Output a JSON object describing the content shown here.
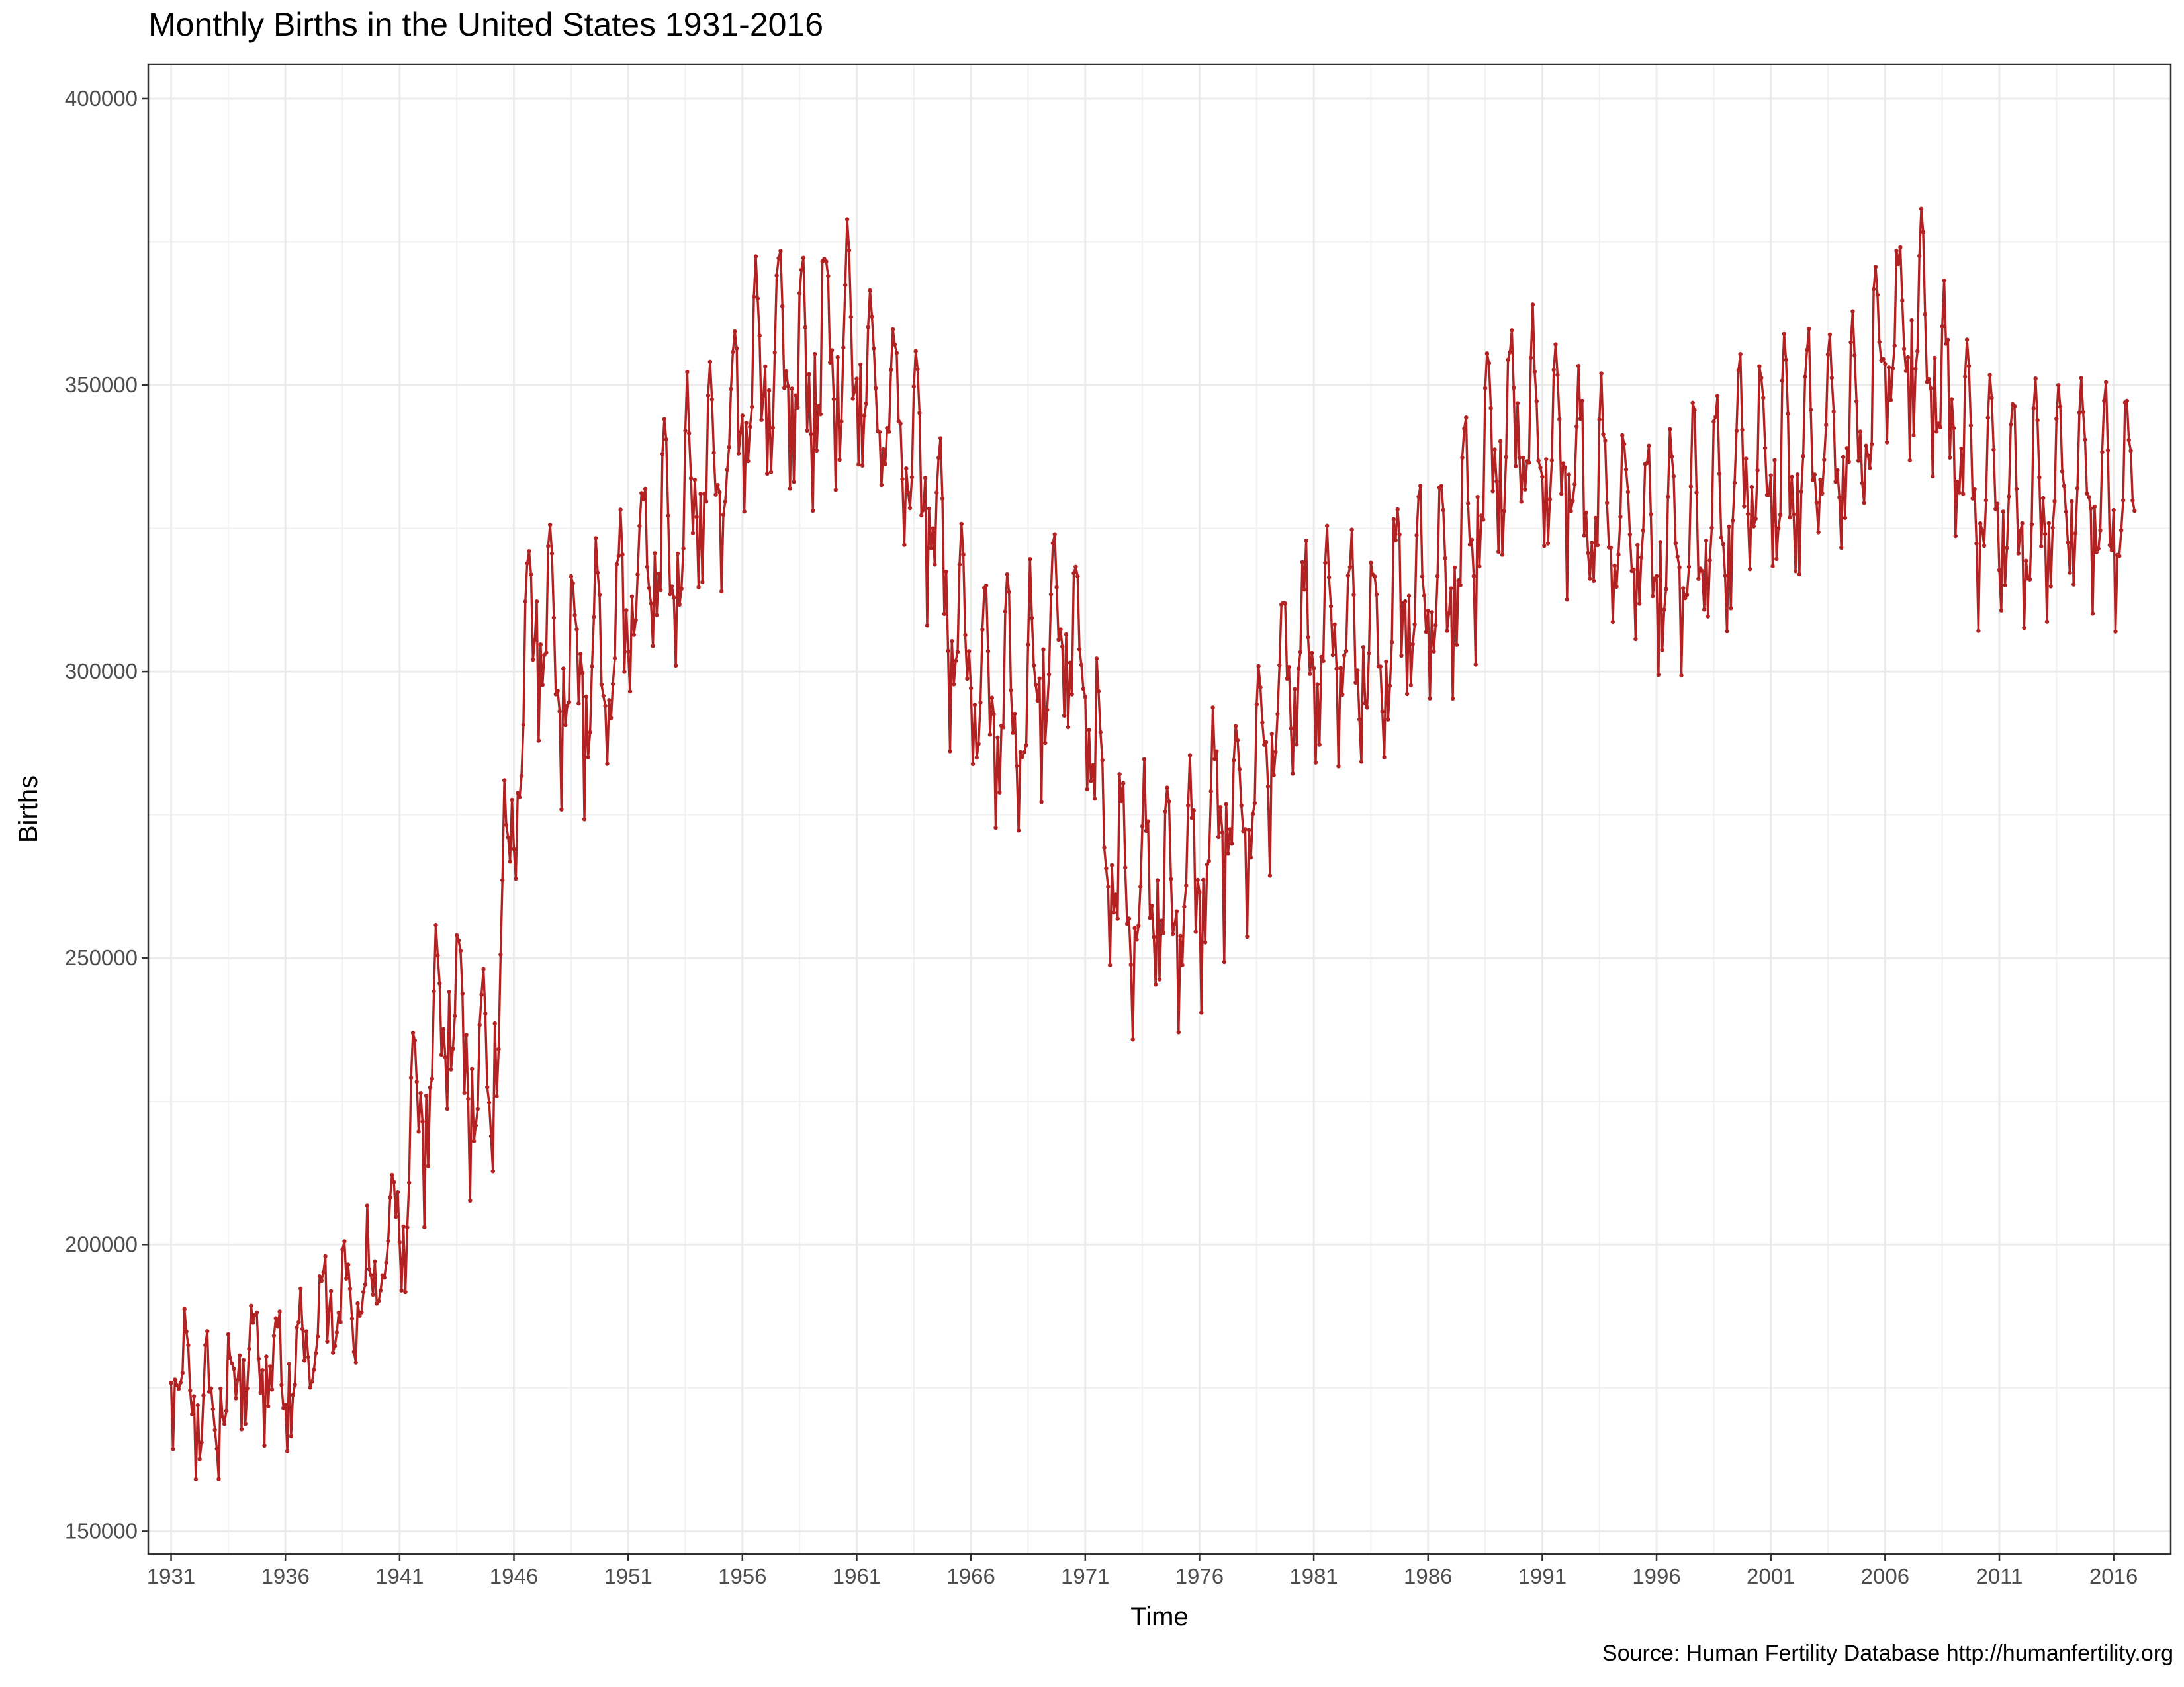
{
  "chart_data": {
    "type": "line",
    "title": "Monthly Births in the United States 1931-2016",
    "caption": "Source: Human Fertility Database http://humanfertility.org",
    "xlabel": "Time",
    "ylabel": "Births",
    "xlim": [
      1930,
      2018.5
    ],
    "ylim": [
      146000,
      406000
    ],
    "x_ticks": [
      1931,
      1936,
      1941,
      1946,
      1951,
      1956,
      1961,
      1966,
      1971,
      1976,
      1981,
      1986,
      1991,
      1996,
      2001,
      2006,
      2011,
      2016
    ],
    "x_tick_labels": [
      "1931",
      "1936",
      "1941",
      "1946",
      "1951",
      "1956",
      "1961",
      "1966",
      "1971",
      "1976",
      "1981",
      "1986",
      "1991",
      "1996",
      "2001",
      "2006",
      "2011",
      "2016"
    ],
    "y_ticks": [
      150000,
      200000,
      250000,
      300000,
      350000,
      400000
    ],
    "y_tick_labels": [
      "150000",
      "200000",
      "250000",
      "300000",
      "350000",
      "400000"
    ],
    "grid": true,
    "series_color": "#b22222",
    "series": [
      {
        "name": "Births",
        "x_start": "1931-01",
        "frequency": "monthly",
        "annual_mean_births": [
          [
            1931,
            177000
          ],
          [
            1932,
            173000
          ],
          [
            1933,
            170000
          ],
          [
            1934,
            178000
          ],
          [
            1935,
            180000
          ],
          [
            1936,
            178000
          ],
          [
            1937,
            182000
          ],
          [
            1938,
            190000
          ],
          [
            1939,
            188000
          ],
          [
            1940,
            195000
          ],
          [
            1941,
            205000
          ],
          [
            1942,
            225000
          ],
          [
            1943,
            243000
          ],
          [
            1944,
            233000
          ],
          [
            1945,
            228000
          ],
          [
            1946,
            278000
          ],
          [
            1947,
            315000
          ],
          [
            1948,
            298000
          ],
          [
            1949,
            300000
          ],
          [
            1950,
            298000
          ],
          [
            1951,
            312000
          ],
          [
            1952,
            320000
          ],
          [
            1953,
            322000
          ],
          [
            1954,
            333000
          ],
          [
            1955,
            334000
          ],
          [
            1956,
            345000
          ],
          [
            1957,
            355000
          ],
          [
            1958,
            350000
          ],
          [
            1959,
            352000
          ],
          [
            1960,
            355000
          ],
          [
            1961,
            356000
          ],
          [
            1962,
            348000
          ],
          [
            1963,
            343000
          ],
          [
            1964,
            335000
          ],
          [
            1965,
            312000
          ],
          [
            1966,
            300000
          ],
          [
            1967,
            293000
          ],
          [
            1968,
            292000
          ],
          [
            1969,
            300000
          ],
          [
            1970,
            308000
          ],
          [
            1971,
            298000
          ],
          [
            1972,
            270000
          ],
          [
            1973,
            260000
          ],
          [
            1974,
            262000
          ],
          [
            1975,
            260000
          ],
          [
            1976,
            264000
          ],
          [
            1977,
            275000
          ],
          [
            1978,
            276000
          ],
          [
            1979,
            288000
          ],
          [
            1980,
            300000
          ],
          [
            1981,
            302000
          ],
          [
            1982,
            305000
          ],
          [
            1983,
            302000
          ],
          [
            1984,
            304000
          ],
          [
            1985,
            313000
          ],
          [
            1986,
            312000
          ],
          [
            1987,
            317000
          ],
          [
            1988,
            326000
          ],
          [
            1989,
            337000
          ],
          [
            1990,
            346000
          ],
          [
            1991,
            340000
          ],
          [
            1992,
            337000
          ],
          [
            1993,
            332000
          ],
          [
            1994,
            328000
          ],
          [
            1995,
            323000
          ],
          [
            1996,
            323000
          ],
          [
            1997,
            322000
          ],
          [
            1998,
            326000
          ],
          [
            1999,
            327000
          ],
          [
            2000,
            337000
          ],
          [
            2001,
            335000
          ],
          [
            2002,
            334000
          ],
          [
            2003,
            341000
          ],
          [
            2004,
            341000
          ],
          [
            2005,
            344000
          ],
          [
            2006,
            354000
          ],
          [
            2007,
            360000
          ],
          [
            2008,
            354000
          ],
          [
            2009,
            343000
          ],
          [
            2010,
            333000
          ],
          [
            2011,
            329000
          ],
          [
            2012,
            328000
          ],
          [
            2013,
            328000
          ],
          [
            2014,
            332000
          ],
          [
            2015,
            331000
          ],
          [
            2016,
            329000
          ]
        ],
        "seasonal_offsets_by_month": [
          -6000,
          -20000,
          -3000,
          -13000,
          -6000,
          -3000,
          13000,
          19000,
          16000,
          9000,
          -4000,
          -2000
        ]
      }
    ]
  }
}
